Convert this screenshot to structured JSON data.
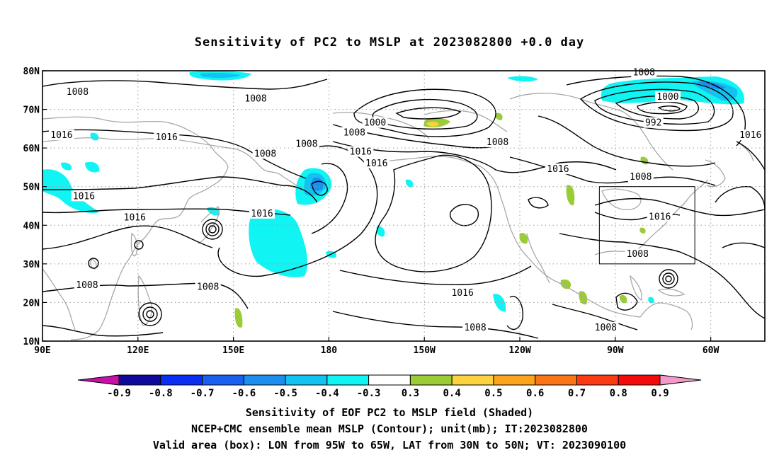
{
  "title": "Sensitivity of PC2 to MSLP at 2023082800 +0.0 day",
  "map": {
    "lon_ticks": [
      {
        "lon": 90,
        "label": "90E"
      },
      {
        "lon": 120,
        "label": "120E"
      },
      {
        "lon": 150,
        "label": "150E"
      },
      {
        "lon": 180,
        "label": "180"
      },
      {
        "lon": 210,
        "label": "150W"
      },
      {
        "lon": 240,
        "label": "120W"
      },
      {
        "lon": 270,
        "label": "90W"
      },
      {
        "lon": 300,
        "label": "60W"
      }
    ],
    "lat_ticks": [
      {
        "lat": 80,
        "label": "80N"
      },
      {
        "lat": 70,
        "label": "70N"
      },
      {
        "lat": 60,
        "label": "60N"
      },
      {
        "lat": 50,
        "label": "50N"
      },
      {
        "lat": 40,
        "label": "40N"
      },
      {
        "lat": 30,
        "label": "30N"
      },
      {
        "lat": 20,
        "label": "20N"
      },
      {
        "lat": 10,
        "label": "10N"
      }
    ],
    "lon_range": [
      90,
      317
    ],
    "lat_range": [
      10,
      80
    ],
    "valid_box": {
      "lon_min": 265,
      "lon_max": 295,
      "lat_min": 30,
      "lat_max": 50
    },
    "grid": true,
    "colors": {
      "contour": "#000000",
      "coast": "#a8a8a8",
      "grid": "#9a9a9a"
    }
  },
  "contour_labels": [
    {
      "text": "1008",
      "lon": 101,
      "lat": 74.5
    },
    {
      "text": "1008",
      "lon": 157,
      "lat": 72.8
    },
    {
      "text": "1016",
      "lon": 96,
      "lat": 63.3
    },
    {
      "text": "1016",
      "lon": 129,
      "lat": 62.8
    },
    {
      "text": "1008",
      "lon": 160,
      "lat": 58.5
    },
    {
      "text": "1008",
      "lon": 173,
      "lat": 61
    },
    {
      "text": "1016",
      "lon": 103,
      "lat": 47.5
    },
    {
      "text": "1016",
      "lon": 119,
      "lat": 42
    },
    {
      "text": "1016",
      "lon": 159,
      "lat": 43
    },
    {
      "text": "1008",
      "lon": 104,
      "lat": 24.5
    },
    {
      "text": "1008",
      "lon": 142,
      "lat": 24
    },
    {
      "text": "1000",
      "lon": 194.5,
      "lat": 66.5
    },
    {
      "text": "1008",
      "lon": 188,
      "lat": 64
    },
    {
      "text": "1016",
      "lon": 190,
      "lat": 59
    },
    {
      "text": "1016",
      "lon": 195,
      "lat": 56
    },
    {
      "text": "1008",
      "lon": 233,
      "lat": 61.5
    },
    {
      "text": "1016",
      "lon": 252,
      "lat": 54.5
    },
    {
      "text": "1016",
      "lon": 222,
      "lat": 22.5
    },
    {
      "text": "1008",
      "lon": 226,
      "lat": 13.5
    },
    {
      "text": "1008",
      "lon": 279,
      "lat": 79.5
    },
    {
      "text": "1000",
      "lon": 286.5,
      "lat": 73.2
    },
    {
      "text": "992",
      "lon": 282,
      "lat": 66.5
    },
    {
      "text": "1016",
      "lon": 312.5,
      "lat": 63.3
    },
    {
      "text": "1008",
      "lon": 278,
      "lat": 52.5
    },
    {
      "text": "1016",
      "lon": 284,
      "lat": 42.2
    },
    {
      "text": "1008",
      "lon": 277,
      "lat": 32.5
    },
    {
      "text": "1008",
      "lon": 267,
      "lat": 13.5
    }
  ],
  "colorbar": {
    "boundaries": [
      "-0.9",
      "-0.8",
      "-0.7",
      "-0.6",
      "-0.5",
      "-0.4",
      "-0.3",
      "0.3",
      "0.4",
      "0.5",
      "0.6",
      "0.7",
      "0.8",
      "0.9"
    ],
    "colors": [
      "#0f0a9a",
      "#0a2ef2",
      "#1a60f0",
      "#1c8ef0",
      "#12c2f0",
      "#10f4f4",
      "#ffffff",
      "#9bcc38",
      "#fcd23e",
      "#fca51c",
      "#fc7418",
      "#fc3a14",
      "#f40a0a"
    ],
    "low_end_color": "#c80fa8",
    "high_end_color": "#f29ac9"
  },
  "captions": [
    "Sensitivity of EOF PC2 to MSLP field (Shaded)",
    "NCEP+CMC ensemble mean MSLP (Contour); unit(mb); IT:2023082800",
    "Valid area (box): LON from 95W to 65W, LAT from 30N to 50N; VT: 2023090100"
  ]
}
